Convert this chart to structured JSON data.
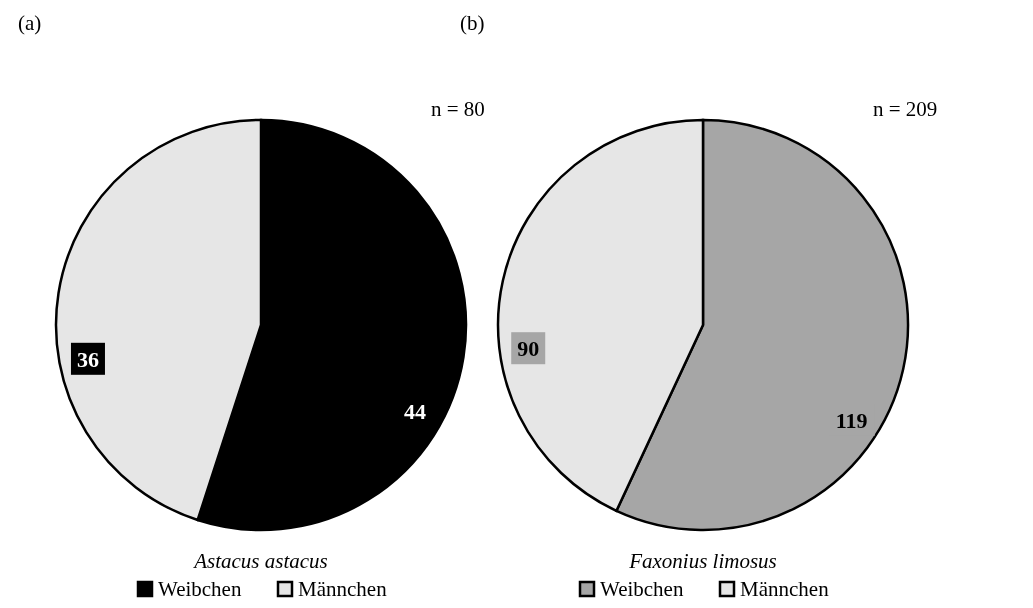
{
  "chart_data": [
    {
      "type": "pie",
      "xlabel": "Astacus astacus",
      "categories": [
        "Weibchen",
        "Männchen"
      ],
      "values": [
        44,
        36
      ],
      "colors": [
        "#000000",
        "#e6e6e6"
      ],
      "data_labels": true,
      "legend": "bottom",
      "annotations": [
        "(a)",
        "n = 80"
      ]
    },
    {
      "type": "pie",
      "xlabel": "Faxonius limosus",
      "categories": [
        "Weibchen",
        "Männchen"
      ],
      "values": [
        119,
        90
      ],
      "colors": [
        "#a6a6a6",
        "#e6e6e6"
      ],
      "data_labels": true,
      "legend": "bottom",
      "annotations": [
        "(b)",
        "n = 209"
      ]
    }
  ]
}
